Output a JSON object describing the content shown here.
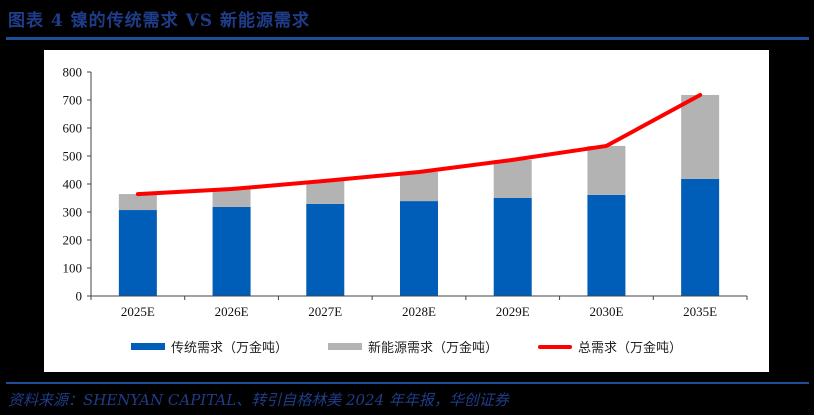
{
  "header": {
    "title": "图表 4   镍的传统需求 VS 新能源需求"
  },
  "footer": {
    "source": "资料来源：SHENYAN CAPITAL、转引自格林美 2024 年年报，华创证券"
  },
  "colors": {
    "traditional": "#005eb8",
    "new_energy": "#b3b3b3",
    "total": "#ff0000",
    "brand": "#1f3c88"
  },
  "chart_data": {
    "type": "bar",
    "stacked": true,
    "title": "镍的传统需求 VS 新能源需求",
    "xlabel": "",
    "ylabel": "",
    "ylim": [
      0,
      800
    ],
    "yticks": [
      0,
      100,
      200,
      300,
      400,
      500,
      600,
      700,
      800
    ],
    "categories": [
      "2025E",
      "2026E",
      "2027E",
      "2028E",
      "2029E",
      "2030E",
      "2035E"
    ],
    "series": [
      {
        "name": "传统需求（万金吨）",
        "type": "bar",
        "color": "#005eb8",
        "values": [
          307,
          318,
          329,
          339,
          350,
          361,
          418
        ]
      },
      {
        "name": "新能源需求（万金吨）",
        "type": "bar",
        "color": "#b3b3b3",
        "values": [
          57,
          64,
          82,
          104,
          136,
          175,
          300
        ]
      },
      {
        "name": "总需求（万金吨）",
        "type": "line",
        "color": "#ff0000",
        "values": [
          364,
          382,
          411,
          443,
          486,
          536,
          718
        ]
      }
    ],
    "legend_position": "bottom",
    "grid": false
  },
  "legend": {
    "traditional": "传统需求（万金吨）",
    "new_energy": "新能源需求（万金吨）",
    "total": "总需求（万金吨）"
  }
}
